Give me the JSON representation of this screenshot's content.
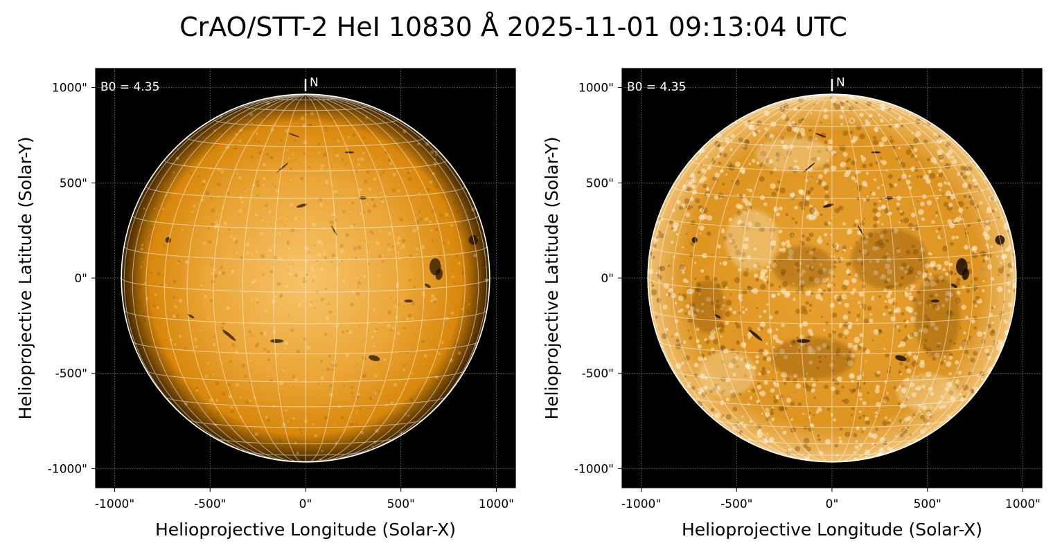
{
  "title": "CrAO/STT-2 HeI 10830 Å 2025-11-01 09:13:04 UTC",
  "colors": {
    "background": "#000000",
    "disk_bright": "#f7c46a",
    "disk_mid": "#d8870a",
    "disk_dark": "#3a2200",
    "grid": "#ffffff",
    "limb": "#ffffff"
  },
  "panels": [
    {
      "id": "left",
      "annotation": "B0 = 4.35",
      "north_label": "N",
      "xlabel": "Helioprojective Longitude (Solar-X)",
      "ylabel": "Helioprojective Latitude (Solar-Y)",
      "xticks": [
        "-1000\"",
        "-500\"",
        "0\"",
        "500\"",
        "1000\""
      ],
      "yticks": [
        "1000\"",
        "500\"",
        "0\"",
        "-500\"",
        "-1000\""
      ],
      "contrast": "normal"
    },
    {
      "id": "right",
      "annotation": "B0 = 4.35",
      "north_label": "N",
      "xlabel": "Helioprojective Longitude (Solar-X)",
      "ylabel": "Helioprojective Latitude (Solar-Y)",
      "xticks": [
        "-1000\"",
        "-500\"",
        "0\"",
        "500\"",
        "1000\""
      ],
      "yticks": [
        "1000\"",
        "500\"",
        "0\"",
        "-500\"",
        "-1000\""
      ],
      "contrast": "enhanced"
    }
  ],
  "chart_data": {
    "type": "image",
    "x_range_arcsec": [
      -1100,
      1100
    ],
    "y_range_arcsec": [
      -1100,
      1100
    ],
    "tick_values_arcsec": [
      -1000,
      -500,
      0,
      500,
      1000
    ],
    "solar_radius_arcsec": 965,
    "b0_deg": 4.35,
    "grid": true,
    "heliographic_grid_step_deg": 10
  }
}
